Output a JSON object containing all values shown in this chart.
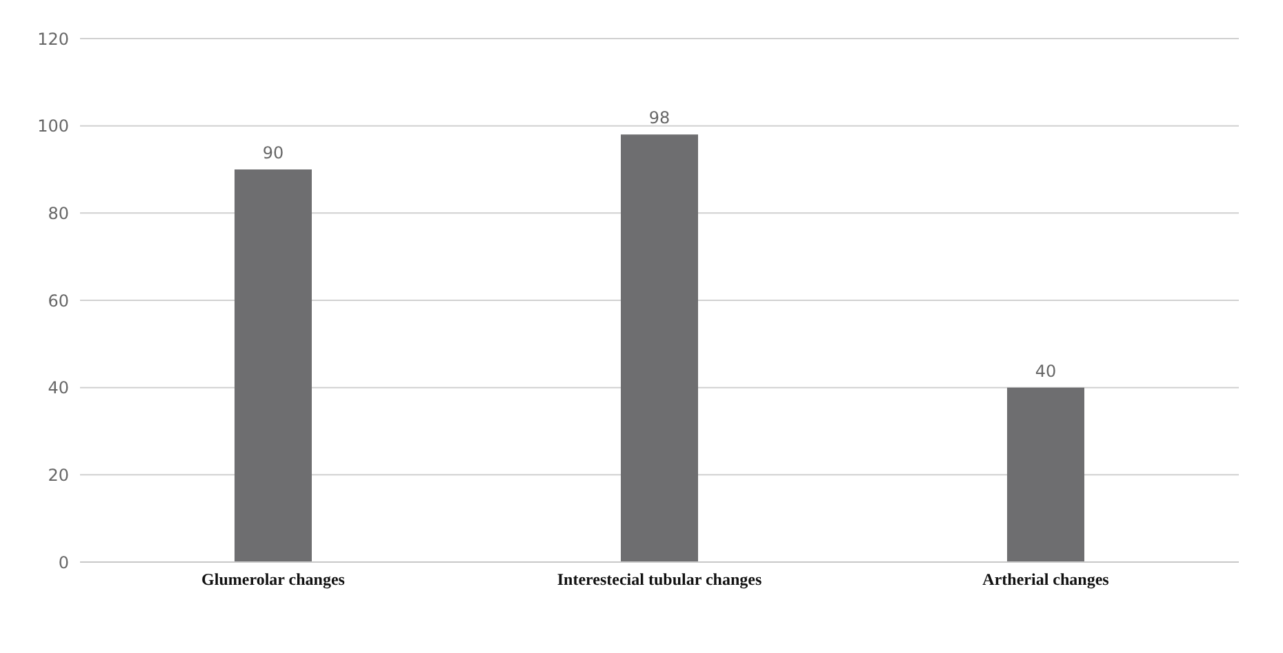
{
  "chart_data": {
    "type": "bar",
    "categories": [
      "Glumerolar changes",
      "Interestecial tubular changes",
      "Artherial changes"
    ],
    "values": [
      90,
      98,
      40
    ],
    "color": "#6e6e70",
    "ylim": [
      0,
      120
    ],
    "yticks": [
      0,
      20,
      40,
      60,
      80,
      100,
      120
    ],
    "grid": "y",
    "data_labels": true
  }
}
